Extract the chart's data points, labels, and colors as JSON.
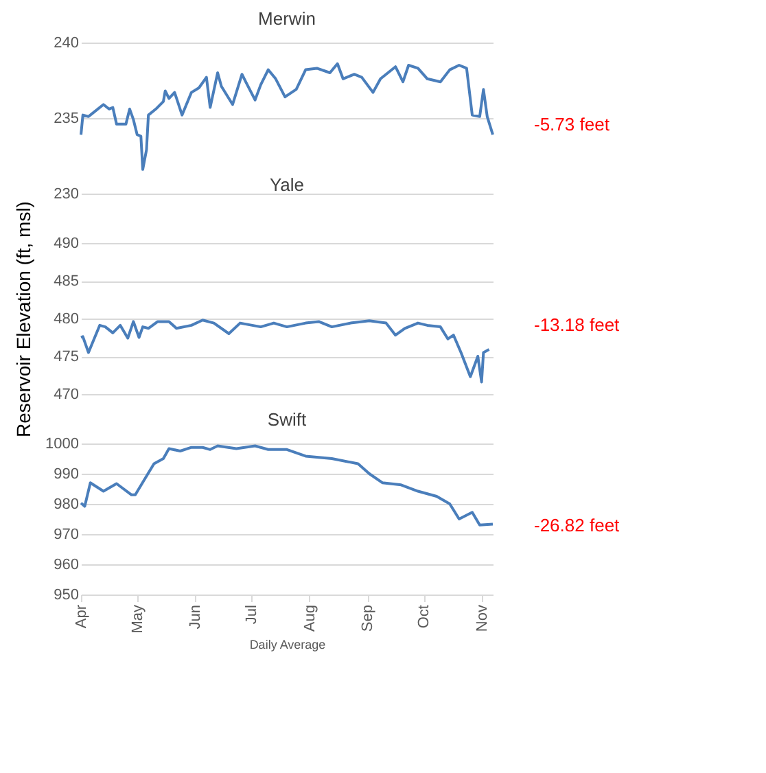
{
  "chart_data": [
    {
      "type": "line",
      "title": "Merwin",
      "x": [
        "--04-01",
        "--04-02",
        "--04-05",
        "--04-07",
        "--04-13",
        "--04-16",
        "--04-18",
        "--04-20",
        "--04-25",
        "--04-27",
        "--04-29",
        "--05-01",
        "--05-03",
        "--05-04",
        "--05-06",
        "--05-07",
        "--05-11",
        "--05-15",
        "--05-16",
        "--05-18",
        "--05-21",
        "--05-25",
        "--05-30",
        "--06-03",
        "--06-07",
        "--06-09",
        "--06-13",
        "--06-15",
        "--06-21",
        "--06-26",
        "--06-28",
        "--07-03",
        "--07-06",
        "--07-10",
        "--07-14",
        "--07-19",
        "--07-25",
        "--07-30",
        "--08-05",
        "--08-12",
        "--08-16",
        "--08-19",
        "--08-25",
        "--08-29",
        "--09-04",
        "--09-08",
        "--09-16",
        "--09-20",
        "--09-23",
        "--09-28",
        "--10-03",
        "--10-10",
        "--10-15",
        "--10-20",
        "--10-24",
        "--10-27",
        "--10-31",
        "--11-02",
        "--11-04",
        "--11-07"
      ],
      "series": [
        {
          "color": "#4a7ebb",
          "values": [
            233.9,
            235.2,
            235.1,
            235.3,
            235.9,
            235.6,
            235.7,
            234.6,
            234.6,
            235.6,
            234.9,
            233.9,
            233.8,
            231.6,
            232.9,
            235.2,
            235.6,
            236.1,
            236.8,
            236.3,
            236.7,
            235.2,
            236.7,
            237.0,
            237.7,
            235.7,
            238.0,
            237.1,
            235.9,
            237.9,
            237.4,
            236.2,
            237.2,
            238.2,
            237.6,
            236.4,
            236.9,
            238.2,
            238.3,
            238.0,
            238.6,
            237.6,
            237.9,
            237.7,
            236.7,
            237.6,
            238.4,
            237.4,
            238.5,
            238.3,
            237.6,
            237.4,
            238.2,
            238.5,
            238.3,
            235.2,
            235.1,
            236.9,
            235.1,
            233.9
          ]
        }
      ],
      "xlim": [
        "--04-01",
        "--11-07"
      ],
      "ylim": [
        230,
        240
      ],
      "yticks": [
        230,
        235,
        240
      ],
      "grid": "y",
      "tick_labels": "y",
      "annotations": [
        "-5.73 feet"
      ]
    },
    {
      "type": "line",
      "title": "Yale",
      "ylabel": "Reservoir Elevation (ft, msl)",
      "x": [
        "--04-01",
        "--04-02",
        "--04-05",
        "--04-11",
        "--04-14",
        "--04-18",
        "--04-22",
        "--04-26",
        "--04-29",
        "--05-02",
        "--05-04",
        "--05-07",
        "--05-12",
        "--05-18",
        "--05-22",
        "--05-30",
        "--06-05",
        "--06-11",
        "--06-19",
        "--06-25",
        "--07-06",
        "--07-13",
        "--07-20",
        "--07-30",
        "--08-06",
        "--08-13",
        "--08-23",
        "--09-02",
        "--09-11",
        "--09-16",
        "--09-21",
        "--09-28",
        "--10-03",
        "--10-10",
        "--10-14",
        "--10-17",
        "--10-21",
        "--10-26",
        "--10-30",
        "--11-01",
        "--11-02",
        "--11-05"
      ],
      "series": [
        {
          "color": "#4a7ebb",
          "values": [
            477.5,
            477.6,
            475.5,
            479.1,
            478.9,
            478.1,
            479.1,
            477.4,
            479.6,
            477.5,
            478.9,
            478.7,
            479.6,
            479.6,
            478.7,
            479.1,
            479.8,
            479.4,
            478.0,
            479.4,
            478.9,
            479.4,
            478.9,
            479.4,
            479.6,
            478.9,
            479.4,
            479.7,
            479.4,
            477.8,
            478.7,
            479.4,
            479.1,
            478.9,
            477.3,
            477.8,
            475.5,
            472.3,
            475.0,
            471.6,
            475.5,
            475.9
          ]
        }
      ],
      "xlim": [
        "--04-01",
        "--11-07"
      ],
      "ylim": [
        470,
        490
      ],
      "yticks": [
        470,
        475,
        480,
        485,
        490
      ],
      "grid": "y",
      "tick_labels": "y",
      "annotations": [
        "-13.18 feet"
      ]
    },
    {
      "type": "line",
      "title": "Swift",
      "xlabel": "Daily Average",
      "x": [
        "--04-01",
        "--04-03",
        "--04-06",
        "--04-13",
        "--04-20",
        "--04-28",
        "--04-30",
        "--05-06",
        "--05-10",
        "--05-15",
        "--05-18",
        "--05-24",
        "--05-30",
        "--06-05",
        "--06-09",
        "--06-13",
        "--06-23",
        "--07-03",
        "--07-10",
        "--07-20",
        "--07-30",
        "--08-13",
        "--08-27",
        "--09-02",
        "--09-09",
        "--09-19",
        "--09-28",
        "--10-08",
        "--10-15",
        "--10-20",
        "--10-27",
        "--10-31",
        "--11-07"
      ],
      "series": [
        {
          "color": "#4a7ebb",
          "values": [
            980.3,
            979.2,
            987.0,
            984.2,
            986.7,
            983.0,
            983.0,
            989.2,
            993.3,
            995.0,
            998.3,
            997.5,
            998.7,
            998.7,
            998.0,
            999.2,
            998.3,
            999.2,
            998.0,
            998.0,
            995.8,
            995.0,
            993.3,
            990.0,
            987.0,
            986.3,
            984.2,
            982.5,
            980.0,
            975.0,
            977.2,
            973.0,
            973.3
          ]
        }
      ],
      "xlim": [
        "--04-01",
        "--11-07"
      ],
      "xticks": [
        {
          "value": "--04-01",
          "label": "Apr"
        },
        {
          "value": "--05-01",
          "label": "May"
        },
        {
          "value": "--06-01",
          "label": "Jun"
        },
        {
          "value": "--07-01",
          "label": "Jul"
        },
        {
          "value": "--08-01",
          "label": "Aug"
        },
        {
          "value": "--09-01",
          "label": "Sep"
        },
        {
          "value": "--10-01",
          "label": "Oct"
        },
        {
          "value": "--11-01",
          "label": "Nov"
        }
      ],
      "ylim": [
        950,
        1000
      ],
      "yticks": [
        950,
        960,
        970,
        980,
        990,
        1000
      ],
      "grid": "y",
      "annotations": [
        "-26.82 feet"
      ]
    }
  ]
}
